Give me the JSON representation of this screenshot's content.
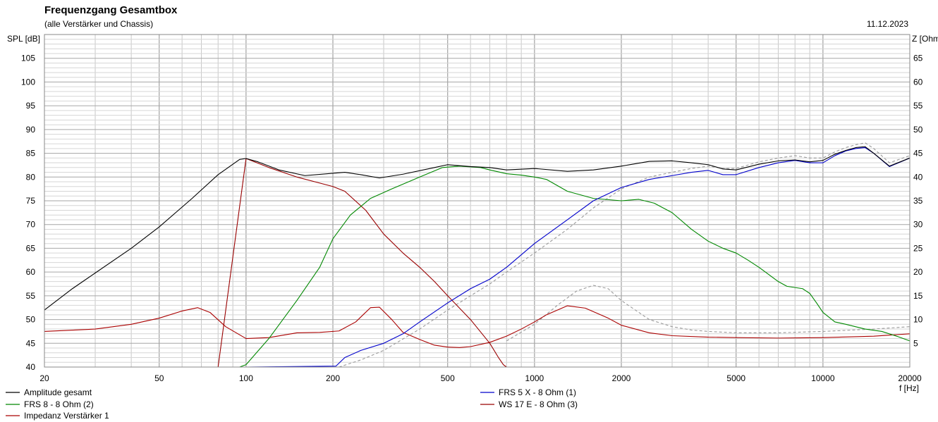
{
  "header": {
    "title": "Frequenzgang Gesamtbox",
    "subtitle": "(alle Verstärker und Chassis)",
    "date": "11.12.2023"
  },
  "chart_data": {
    "type": "line",
    "title": "Frequenzgang Gesamtbox",
    "subtitle": "(alle Verstärker und Chassis)",
    "xlabel": "f [Hz]",
    "ylabel": "SPL [dB]",
    "y2label": "Z [Ohm]",
    "xscale": "log",
    "xlim": [
      20,
      20000
    ],
    "ylim": [
      40,
      110
    ],
    "y2lim": [
      0,
      70
    ],
    "xticks": [
      20,
      50,
      100,
      200,
      500,
      1000,
      2000,
      5000,
      10000,
      20000
    ],
    "yticks": [
      40,
      45,
      50,
      55,
      60,
      65,
      70,
      75,
      80,
      85,
      90,
      95,
      100,
      105
    ],
    "y2ticks": [
      5,
      10,
      15,
      20,
      25,
      30,
      35,
      40,
      45,
      50,
      55,
      60,
      65
    ],
    "grid": true,
    "legend_position": "bottom",
    "series": [
      {
        "name": "Amplitude gesamt",
        "color": "#000000",
        "axis": "left",
        "dash": false,
        "x": [
          20,
          25,
          30,
          40,
          50,
          65,
          80,
          95,
          100,
          110,
          130,
          160,
          200,
          220,
          250,
          290,
          350,
          450,
          500,
          600,
          700,
          800,
          1000,
          1300,
          1600,
          2000,
          2500,
          3000,
          3500,
          4000,
          4500,
          5000,
          6000,
          7000,
          8000,
          9000,
          10000,
          11000,
          12000,
          13000,
          14000,
          15000,
          17000,
          20000
        ],
        "y": [
          52.0,
          56.5,
          59.8,
          65.0,
          69.5,
          75.5,
          80.5,
          83.7,
          83.9,
          83.2,
          81.5,
          80.3,
          80.8,
          81.0,
          80.5,
          79.8,
          80.6,
          82.0,
          82.6,
          82.2,
          82.0,
          81.5,
          81.8,
          81.2,
          81.5,
          82.3,
          83.3,
          83.4,
          83.0,
          82.6,
          81.7,
          81.5,
          82.7,
          83.4,
          83.6,
          83.2,
          83.5,
          84.8,
          85.6,
          86.2,
          86.4,
          85.0,
          82.3,
          84.0
        ]
      },
      {
        "name": "FRS 5 X - 8 Ohm (1)",
        "color": "#0000cc",
        "axis": "left",
        "dash": false,
        "x": [
          20,
          100,
          205,
          220,
          250,
          300,
          350,
          400,
          500,
          600,
          700,
          800,
          1000,
          1300,
          1600,
          2000,
          2500,
          3000,
          3500,
          4000,
          4500,
          5000,
          6000,
          7000,
          8000,
          9000,
          10000,
          11000,
          12000,
          13000,
          14000,
          15000,
          17000,
          20000
        ],
        "y": [
          40.0,
          40.0,
          40.2,
          42.0,
          43.5,
          45.0,
          47.0,
          49.5,
          53.5,
          56.5,
          58.5,
          61.0,
          66.0,
          71.0,
          75.0,
          77.8,
          79.5,
          80.3,
          81.0,
          81.4,
          80.5,
          80.5,
          82.0,
          83.0,
          83.5,
          83.0,
          83.0,
          84.5,
          85.5,
          86.0,
          86.2,
          85.0,
          82.2,
          84.0
        ]
      },
      {
        "name": "FRS 8 - 8 Ohm (2)",
        "color": "#008800",
        "axis": "left",
        "dash": false,
        "x": [
          20,
          95,
          100,
          120,
          150,
          180,
          200,
          230,
          270,
          320,
          400,
          480,
          550,
          650,
          700,
          800,
          900,
          1000,
          1100,
          1300,
          1600,
          2000,
          2300,
          2600,
          3000,
          3500,
          4000,
          4500,
          5000,
          5500,
          6000,
          7000,
          7500,
          8500,
          9000,
          9500,
          10000,
          11000,
          12000,
          14000,
          16000,
          18000,
          20000
        ],
        "y": [
          40.0,
          40.0,
          40.5,
          46.0,
          54.0,
          61.0,
          67.0,
          72.0,
          75.5,
          77.5,
          80.0,
          82.0,
          82.3,
          82.0,
          81.5,
          80.7,
          80.4,
          80.0,
          79.5,
          77.0,
          75.5,
          75.0,
          75.3,
          74.5,
          72.5,
          69.0,
          66.5,
          65.0,
          64.0,
          62.5,
          61.0,
          58.0,
          57.0,
          56.5,
          55.5,
          53.5,
          51.5,
          49.5,
          49.0,
          48.0,
          47.5,
          46.5,
          45.5
        ]
      },
      {
        "name": "WS 17 E - 8 Ohm   (3)",
        "color": "#990000",
        "axis": "left",
        "dash": false,
        "x": [
          20,
          40,
          60,
          80,
          100,
          120,
          150,
          200,
          220,
          260,
          300,
          350,
          400,
          450,
          500,
          600,
          700,
          750,
          780,
          800,
          20000
        ],
        "y": [
          40.0,
          40.0,
          40.0,
          40.0,
          83.9,
          82.0,
          80.0,
          78.0,
          77.0,
          73.0,
          68.0,
          64.0,
          61.0,
          58.0,
          55.0,
          50.0,
          45.0,
          42.0,
          40.5,
          40.0,
          40.0
        ]
      },
      {
        "name": "Impedanz Verstärker 1",
        "color": "#aa0000",
        "axis": "right",
        "dash": false,
        "x": [
          20,
          30,
          40,
          50,
          60,
          68,
          75,
          85,
          100,
          120,
          150,
          180,
          210,
          240,
          270,
          290,
          320,
          350,
          400,
          450,
          500,
          550,
          600,
          700,
          800,
          900,
          1000,
          1100,
          1300,
          1500,
          1800,
          2000,
          2500,
          3000,
          4000,
          5000,
          7000,
          10000,
          15000,
          20000
        ],
        "y": [
          7.5,
          8.0,
          9.0,
          10.3,
          11.8,
          12.5,
          11.5,
          8.5,
          6.0,
          6.2,
          7.2,
          7.3,
          7.6,
          9.5,
          12.5,
          12.6,
          10.0,
          7.3,
          5.8,
          4.6,
          4.2,
          4.1,
          4.3,
          5.2,
          6.5,
          8.0,
          9.5,
          11.0,
          12.9,
          12.4,
          10.3,
          8.8,
          7.2,
          6.6,
          6.3,
          6.2,
          6.1,
          6.2,
          6.5,
          7.0
        ]
      },
      {
        "name": "",
        "color": "#999999",
        "axis": "left",
        "dash": true,
        "x": [
          210,
          250,
          300,
          400,
          500,
          600,
          700,
          800,
          1000,
          1300,
          1600,
          2000,
          2500,
          3000,
          3500,
          4000,
          4500,
          5000,
          6000,
          7000,
          8000,
          9000,
          10000,
          11000,
          12000,
          13000,
          14000,
          15000,
          17000,
          20000
        ],
        "y": [
          40.0,
          41.5,
          43.5,
          48.0,
          52.0,
          55.0,
          57.5,
          60.0,
          64.0,
          69.0,
          73.5,
          77.5,
          80.0,
          81.0,
          81.8,
          82.3,
          81.8,
          81.8,
          83.2,
          84.0,
          84.5,
          84.0,
          84.0,
          85.3,
          86.2,
          86.8,
          87.2,
          86.0,
          83.0,
          84.5
        ]
      },
      {
        "name": "",
        "color": "#999999",
        "axis": "right",
        "dash": true,
        "x": [
          800,
          1000,
          1200,
          1400,
          1600,
          1800,
          2000,
          2500,
          3000,
          3500,
          4000,
          5000,
          7000,
          10000,
          15000,
          20000
        ],
        "y": [
          5.5,
          9.0,
          13.0,
          16.0,
          17.2,
          16.5,
          14.0,
          10.0,
          8.5,
          7.8,
          7.5,
          7.2,
          7.2,
          7.5,
          8.0,
          8.5
        ]
      }
    ]
  }
}
